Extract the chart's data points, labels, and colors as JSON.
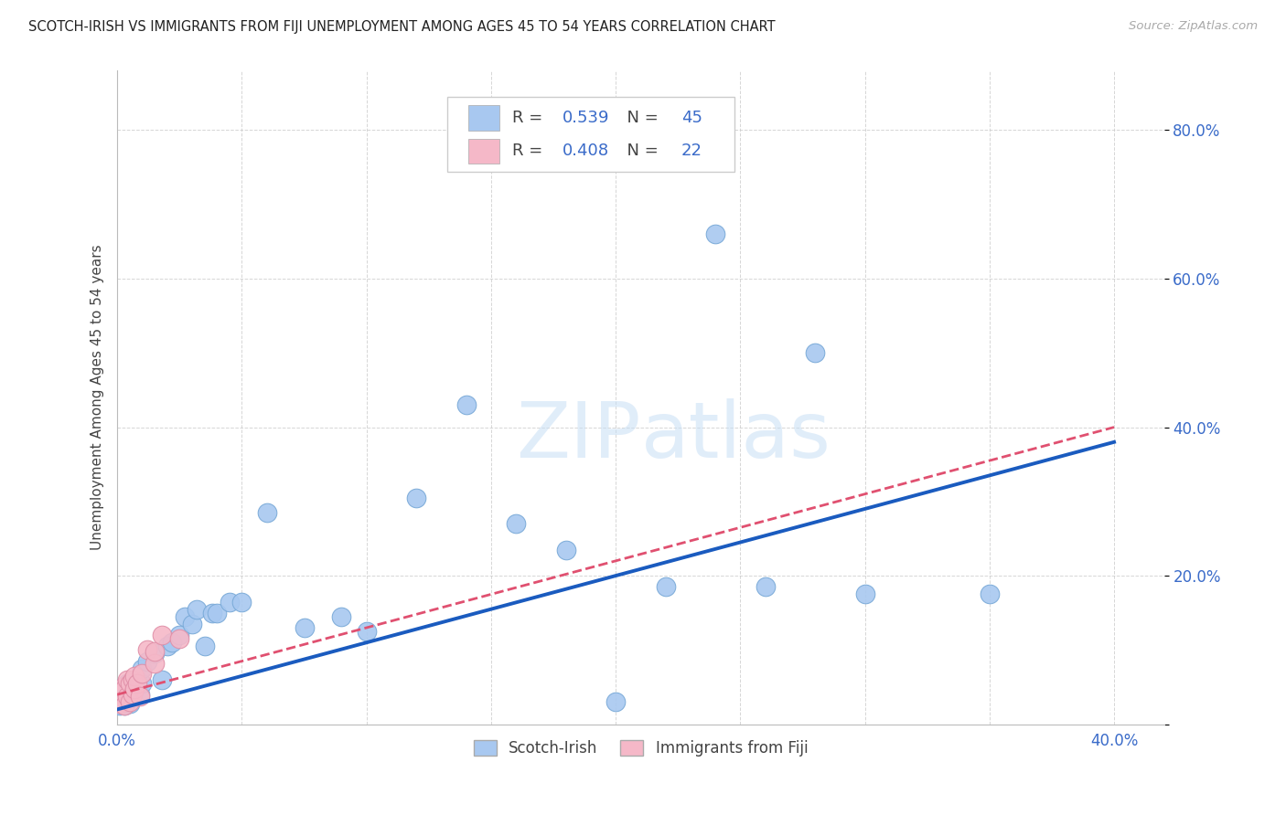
{
  "title": "SCOTCH-IRISH VS IMMIGRANTS FROM FIJI UNEMPLOYMENT AMONG AGES 45 TO 54 YEARS CORRELATION CHART",
  "source": "Source: ZipAtlas.com",
  "ylabel": "Unemployment Among Ages 45 to 54 years",
  "xlim": [
    0.0,
    0.42
  ],
  "ylim": [
    0.0,
    0.88
  ],
  "xticks": [
    0.0,
    0.05,
    0.1,
    0.15,
    0.2,
    0.25,
    0.3,
    0.35,
    0.4
  ],
  "yticks": [
    0.0,
    0.2,
    0.4,
    0.6,
    0.8
  ],
  "background_color": "#ffffff",
  "grid_color": "#cccccc",
  "watermark_zip": "ZIP",
  "watermark_atlas": "atlas",
  "scotch_irish_color": "#a8c8f0",
  "fiji_color": "#f5b8c8",
  "scotch_irish_edge": "#7aaad8",
  "fiji_edge": "#e090a8",
  "scotch_irish_line_color": "#1a5bbf",
  "fiji_line_color": "#e05070",
  "scotch_irish_R": 0.539,
  "scotch_irish_N": 45,
  "fiji_R": 0.408,
  "fiji_N": 22,
  "si_x": [
    0.001,
    0.001,
    0.002,
    0.002,
    0.003,
    0.003,
    0.004,
    0.004,
    0.005,
    0.005,
    0.006,
    0.007,
    0.008,
    0.009,
    0.01,
    0.01,
    0.012,
    0.015,
    0.018,
    0.02,
    0.022,
    0.025,
    0.027,
    0.03,
    0.032,
    0.035,
    0.038,
    0.04,
    0.045,
    0.05,
    0.06,
    0.075,
    0.09,
    0.1,
    0.12,
    0.14,
    0.16,
    0.18,
    0.2,
    0.22,
    0.24,
    0.26,
    0.28,
    0.3,
    0.35
  ],
  "si_y": [
    0.025,
    0.04,
    0.03,
    0.05,
    0.025,
    0.045,
    0.03,
    0.055,
    0.028,
    0.045,
    0.04,
    0.05,
    0.06,
    0.04,
    0.055,
    0.075,
    0.085,
    0.095,
    0.06,
    0.105,
    0.11,
    0.12,
    0.145,
    0.135,
    0.155,
    0.105,
    0.15,
    0.15,
    0.165,
    0.165,
    0.285,
    0.13,
    0.145,
    0.125,
    0.305,
    0.43,
    0.27,
    0.235,
    0.03,
    0.185,
    0.66,
    0.185,
    0.5,
    0.175,
    0.175
  ],
  "fj_x": [
    0.001,
    0.001,
    0.002,
    0.002,
    0.003,
    0.003,
    0.004,
    0.004,
    0.005,
    0.005,
    0.006,
    0.006,
    0.007,
    0.007,
    0.008,
    0.009,
    0.01,
    0.012,
    0.015,
    0.015,
    0.018,
    0.025
  ],
  "fj_y": [
    0.028,
    0.04,
    0.032,
    0.05,
    0.025,
    0.048,
    0.038,
    0.06,
    0.03,
    0.055,
    0.04,
    0.06,
    0.048,
    0.065,
    0.055,
    0.038,
    0.068,
    0.1,
    0.082,
    0.098,
    0.12,
    0.115
  ]
}
